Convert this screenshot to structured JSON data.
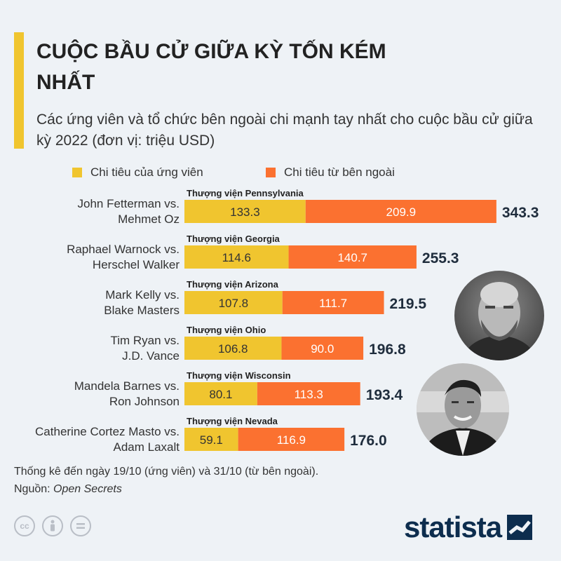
{
  "header": {
    "title": "CUỘC BẦU CỬ GIỮA KỲ TỐN KÉM NHẤT",
    "subtitle": "Các ứng viên và tổ chức bên ngoài chi mạnh tay nhất cho cuộc bầu cử giữa kỳ 2022 (đơn vị: triệu USD)"
  },
  "colors": {
    "candidate": "#f0c52f",
    "outside": "#fb7130",
    "accent": "#f0c52f",
    "brand": "#0d2d4e"
  },
  "chart_data": {
    "type": "bar",
    "orientation": "horizontal",
    "stacked": true,
    "legend_placement": "top",
    "series": [
      {
        "name": "Chi tiêu của ứng viên",
        "values": [
          133.3,
          114.6,
          107.8,
          106.8,
          80.1,
          59.1
        ]
      },
      {
        "name": "Chi tiêu từ bên ngoài",
        "values": [
          209.9,
          140.7,
          111.7,
          90.0,
          113.3,
          116.9
        ]
      }
    ],
    "rows": [
      {
        "line1": "John Fetterman vs.",
        "line2": "Mehmet Oz",
        "race": "Thượng viện Pennsylvania",
        "total": "343.3"
      },
      {
        "line1": "Raphael Warnock vs.",
        "line2": "Herschel Walker",
        "race": "Thượng viện Georgia",
        "total": "255.3"
      },
      {
        "line1": "Mark Kelly vs.",
        "line2": "Blake Masters",
        "race": "Thượng viện Arizona",
        "total": "219.5"
      },
      {
        "line1": "Tim Ryan vs.",
        "line2": "J.D. Vance",
        "race": "Thượng viện Ohio",
        "total": "196.8"
      },
      {
        "line1": "Mandela Barnes vs.",
        "line2": "Ron Johnson",
        "race": "Thượng viện Wisconsin",
        "total": "193.4"
      },
      {
        "line1": "Catherine Cortez Masto vs.",
        "line2": "Adam Laxalt",
        "race": "Thượng viện Nevada",
        "total": "176.0"
      }
    ]
  },
  "footer": {
    "note": "Thống kê đến ngày 19/10 (ứng viên) và 31/10 (từ bên ngoài).",
    "source_prefix": "Nguồn: ",
    "source_name": "Open Secrets",
    "brand": "statista"
  },
  "icons": [
    "cc-icon",
    "person-icon",
    "equals-icon",
    "statista-logo-icon"
  ]
}
